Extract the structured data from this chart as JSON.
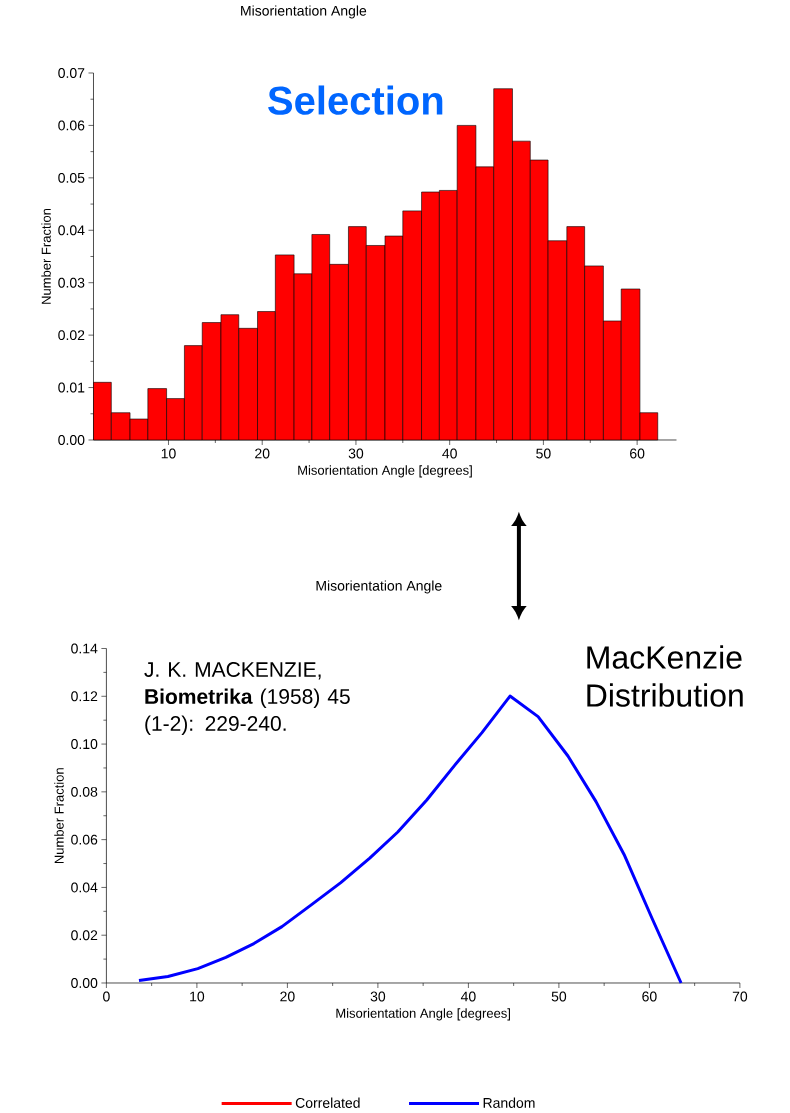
{
  "chart_data": [
    {
      "type": "histogram",
      "title": "Misorientation Angle",
      "xlabel": "Misorientation Angle [degrees]",
      "ylabel": "Number Fraction",
      "annotations": [
        "Selection"
      ],
      "bins": [
        2.0,
        3.9,
        5.9,
        7.8,
        9.8,
        11.7,
        13.6,
        15.6,
        17.5,
        19.5,
        21.4,
        23.4,
        25.3,
        27.2,
        29.2,
        31.1,
        33.1,
        35.0,
        37.0,
        38.9,
        40.8,
        42.8,
        44.7,
        46.7,
        48.6,
        50.5,
        52.5,
        54.4,
        56.4,
        58.3,
        60.3,
        62.2
      ],
      "series": [
        {
          "name": "Correlated",
          "color": "#ff0000",
          "values": [
            0.011,
            0.0052,
            0.004,
            0.0098,
            0.0079,
            0.018,
            0.0224,
            0.0239,
            0.0213,
            0.0245,
            0.0353,
            0.0317,
            0.0392,
            0.0335,
            0.0407,
            0.0371,
            0.0389,
            0.0437,
            0.0473,
            0.0476,
            0.06,
            0.0521,
            0.067,
            0.057,
            0.0534,
            0.038,
            0.0407,
            0.0332,
            0.0227,
            0.0288,
            0.0052
          ]
        }
      ],
      "xlim": [
        2,
        64.2
      ],
      "xticks": [
        10,
        20,
        30,
        40,
        50,
        60
      ],
      "ylim": [
        0,
        0.07
      ],
      "yticks": [
        {
          "value": 0,
          "label": "0.00"
        },
        {
          "value": 0.01,
          "label": "0.01"
        },
        {
          "value": 0.02,
          "label": "0.02"
        },
        {
          "value": 0.03,
          "label": "0.03"
        },
        {
          "value": 0.04,
          "label": "0.04"
        },
        {
          "value": 0.05,
          "label": "0.05"
        },
        {
          "value": 0.06,
          "label": "0.06"
        },
        {
          "value": 0.07,
          "label": "0.07"
        }
      ]
    },
    {
      "type": "line",
      "title": "Misorientation Angle",
      "xlabel": "Misorientation Angle [degrees]",
      "ylabel": "Number Fraction",
      "annotations": [
        "J. K. MACKENZIE, **Biometrika** (1958) 45 (1-2): 229-240.",
        "MacKenzie Distribution"
      ],
      "x": [
        3.6,
        6.8,
        10.1,
        13.2,
        16.3,
        19.4,
        22.6,
        25.9,
        29.1,
        32.2,
        35.4,
        38.5,
        41.5,
        44.6,
        47.7,
        51.0,
        54.1,
        57.2,
        60.3,
        63.5
      ],
      "series": [
        {
          "name": "Random",
          "color": "#0000ff",
          "values": [
            0.001,
            0.0027,
            0.006,
            0.0107,
            0.0165,
            0.0236,
            0.0326,
            0.042,
            0.0523,
            0.0632,
            0.0766,
            0.0912,
            0.1048,
            0.1201,
            0.1115,
            0.095,
            0.0759,
            0.0538,
            0.027,
            0.0
          ]
        }
      ],
      "xlim": [
        0,
        70
      ],
      "xticks": [
        0,
        10,
        20,
        30,
        40,
        50,
        60,
        70
      ],
      "ylim": [
        0,
        0.14
      ],
      "yticks": [
        {
          "value": 0,
          "label": "0.00"
        },
        {
          "value": 0.02,
          "label": "0.02"
        },
        {
          "value": 0.04,
          "label": "0.04"
        },
        {
          "value": 0.06,
          "label": "0.06"
        },
        {
          "value": 0.08,
          "label": "0.08"
        },
        {
          "value": 0.1,
          "label": "0.10"
        },
        {
          "value": 0.12,
          "label": "0.12"
        },
        {
          "value": 0.14,
          "label": "0.14"
        }
      ],
      "legend": "bottom"
    }
  ]
}
